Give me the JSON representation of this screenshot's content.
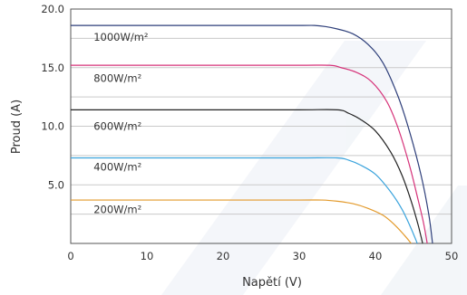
{
  "chart_data": {
    "type": "line",
    "xlabel": "Napětí (V)",
    "ylabel": "Proud (A)",
    "xlim": [
      0,
      50
    ],
    "ylim": [
      0,
      20
    ],
    "x_ticks": [
      "0",
      "10",
      "20",
      "30",
      "40",
      "50"
    ],
    "y_ticks": [
      "5.0",
      "10.0",
      "15.0",
      "20.0"
    ],
    "grid": "horizontal",
    "series": [
      {
        "name": "1000W/m²",
        "color": "#2e3f7a",
        "points": [
          [
            0,
            18.6
          ],
          [
            10,
            18.6
          ],
          [
            20,
            18.6
          ],
          [
            30,
            18.6
          ],
          [
            32,
            18.6
          ],
          [
            33.5,
            18.5
          ],
          [
            35,
            18.3
          ],
          [
            37,
            17.9
          ],
          [
            39,
            17.0
          ],
          [
            41,
            15.4
          ],
          [
            43,
            12.5
          ],
          [
            44.5,
            9.5
          ],
          [
            46,
            5.8
          ],
          [
            47,
            2.5
          ],
          [
            47.5,
            0
          ]
        ]
      },
      {
        "name": "800W/m²",
        "color": "#d6337a",
        "points": [
          [
            0,
            15.2
          ],
          [
            10,
            15.2
          ],
          [
            20,
            15.2
          ],
          [
            30,
            15.2
          ],
          [
            34,
            15.2
          ],
          [
            35.5,
            15.0
          ],
          [
            37.5,
            14.6
          ],
          [
            39.5,
            13.8
          ],
          [
            41.5,
            12.1
          ],
          [
            43,
            9.8
          ],
          [
            44.5,
            6.6
          ],
          [
            45.5,
            4.0
          ],
          [
            46.3,
            1.8
          ],
          [
            46.8,
            0
          ]
        ]
      },
      {
        "name": "600W/m²",
        "color": "#222222",
        "points": [
          [
            0,
            11.4
          ],
          [
            10,
            11.4
          ],
          [
            20,
            11.4
          ],
          [
            30,
            11.4
          ],
          [
            35,
            11.4
          ],
          [
            36.5,
            11.1
          ],
          [
            38,
            10.6
          ],
          [
            40,
            9.6
          ],
          [
            42,
            7.8
          ],
          [
            43.5,
            5.8
          ],
          [
            44.7,
            3.6
          ],
          [
            45.6,
            1.6
          ],
          [
            46.2,
            0
          ]
        ]
      },
      {
        "name": "400W/m²",
        "color": "#3aa3dc",
        "points": [
          [
            0,
            7.3
          ],
          [
            10,
            7.3
          ],
          [
            20,
            7.3
          ],
          [
            30,
            7.3
          ],
          [
            35,
            7.3
          ],
          [
            36.5,
            7.1
          ],
          [
            38,
            6.7
          ],
          [
            40,
            5.9
          ],
          [
            42,
            4.4
          ],
          [
            43.5,
            2.9
          ],
          [
            44.6,
            1.4
          ],
          [
            45.5,
            0
          ]
        ]
      },
      {
        "name": "200W/m²",
        "color": "#e39a2b",
        "points": [
          [
            0,
            3.7
          ],
          [
            10,
            3.7
          ],
          [
            20,
            3.7
          ],
          [
            30,
            3.7
          ],
          [
            33,
            3.7
          ],
          [
            35,
            3.6
          ],
          [
            37,
            3.4
          ],
          [
            39,
            3.0
          ],
          [
            41,
            2.4
          ],
          [
            42.5,
            1.6
          ],
          [
            43.8,
            0.7
          ],
          [
            44.7,
            0
          ]
        ]
      }
    ],
    "labels": [
      {
        "text": "1000W/m²",
        "x": 3,
        "y": 17.3
      },
      {
        "text": "800W/m²",
        "x": 3,
        "y": 13.8
      },
      {
        "text": "600W/m²",
        "x": 3,
        "y": 9.7
      },
      {
        "text": "400W/m²",
        "x": 3,
        "y": 6.2
      },
      {
        "text": "200W/m²",
        "x": 3,
        "y": 2.6
      }
    ]
  }
}
